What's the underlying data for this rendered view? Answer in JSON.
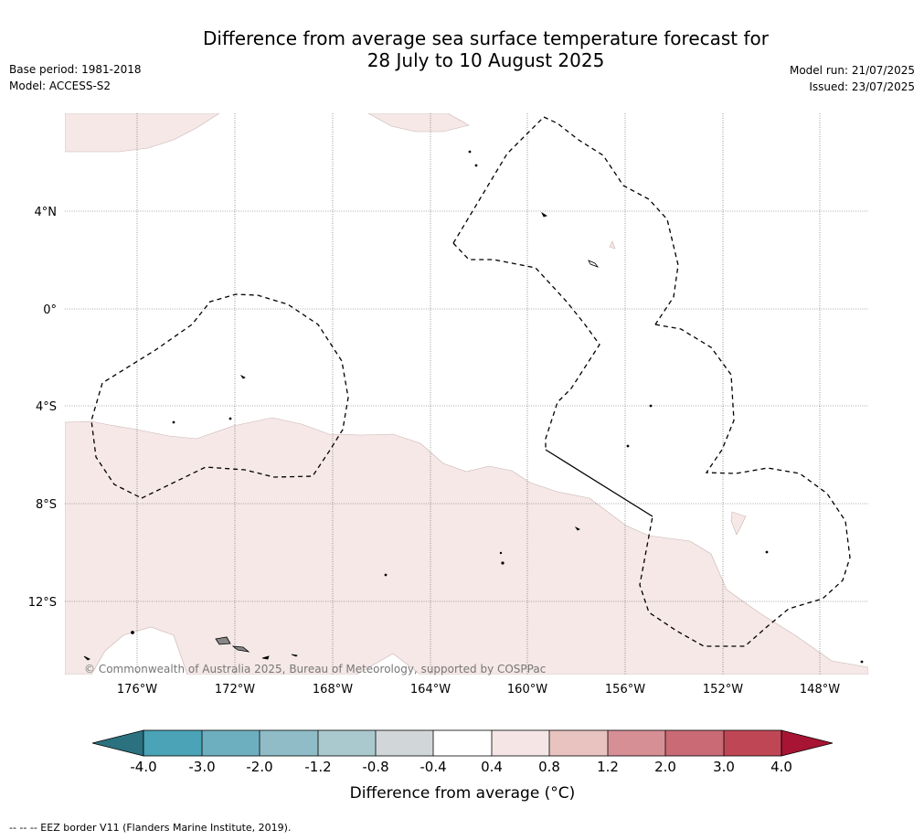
{
  "title_line1": "Difference from average sea surface temperature forecast for",
  "title_line2": "28 July to 10 August 2025",
  "base_period": "Base period: 1981-2018",
  "model": "Model: ACCESS-S2",
  "model_run": "Model run: 21/07/2025",
  "issued": "Issued: 23/07/2025",
  "lat_labels": [
    "4°N",
    "0°",
    "4°S",
    "8°S",
    "12°S"
  ],
  "lon_labels": [
    "176°W",
    "172°W",
    "168°W",
    "164°W",
    "160°W",
    "156°W",
    "152°W",
    "148°W"
  ],
  "copyright": "© Commonwealth of Australia 2025, Bureau of Meteorology, supported by COSPPac",
  "colorbar": {
    "title": "Difference from average (°C)",
    "ticks": [
      "-4.0",
      "-3.0",
      "-2.0",
      "-1.2",
      "-0.8",
      "-0.4",
      "0.4",
      "0.8",
      "1.2",
      "2.0",
      "3.0",
      "4.0"
    ],
    "colors": [
      "#2b7180",
      "#4aa3b6",
      "#6eafbf",
      "#8fbcc6",
      "#aac9cf",
      "#d1d7d8",
      "#ffffff",
      "#f5e6e5",
      "#e8c3bf",
      "#d68f95",
      "#c96a75",
      "#bf4755",
      "#a81433"
    ]
  },
  "footer": "--  --  -- EEZ border V11 (Flanders Marine Institute, 2019).",
  "colors": {
    "anomaly_fill": "#f5e8e7",
    "grid": "#555555"
  }
}
